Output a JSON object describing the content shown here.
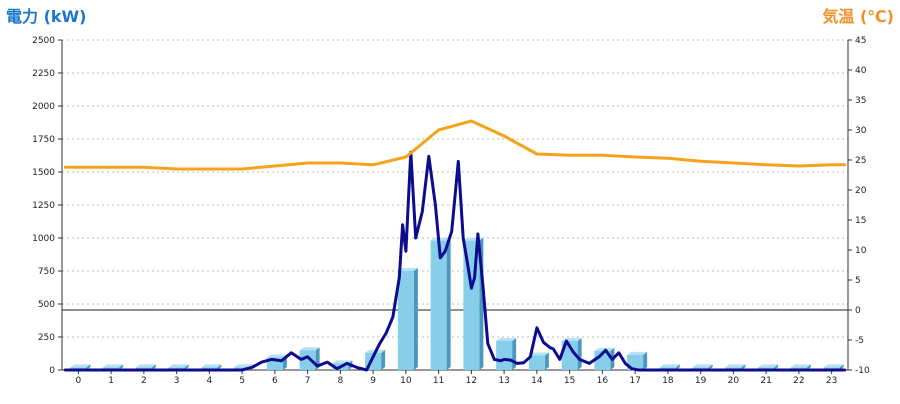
{
  "chart_data": {
    "type": "bar",
    "title": "",
    "left_axis": {
      "label": "電力 (kW)",
      "ylim": [
        0,
        2500
      ],
      "ticks": [
        0,
        250,
        500,
        750,
        1000,
        1250,
        1500,
        1750,
        2000,
        2250,
        2500
      ]
    },
    "right_axis": {
      "label": "気温 (℃)",
      "ylim": [
        -10,
        45
      ],
      "ticks": [
        -10,
        -5,
        0,
        5,
        10,
        15,
        20,
        25,
        30,
        35,
        40,
        45
      ]
    },
    "categories": [
      "0",
      "1",
      "2",
      "3",
      "4",
      "5",
      "6",
      "7",
      "8",
      "9",
      "10",
      "11",
      "12",
      "13",
      "14",
      "15",
      "16",
      "17",
      "18",
      "19",
      "20",
      "21",
      "22",
      "23"
    ],
    "grid": true,
    "legend": "none",
    "series": [
      {
        "kind": "bar",
        "axis": "left",
        "color": "#87ceeb",
        "values": [
          20,
          20,
          20,
          20,
          20,
          20,
          95,
          150,
          50,
          130,
          750,
          980,
          980,
          220,
          110,
          220,
          145,
          115,
          20,
          20,
          20,
          20,
          20,
          20
        ]
      },
      {
        "kind": "line",
        "axis": "left",
        "color": "#0c0c8c",
        "x": [
          -0.4,
          0,
          1,
          2,
          3,
          4,
          5,
          5.3,
          5.6,
          5.9,
          6.2,
          6.5,
          6.8,
          7.0,
          7.3,
          7.6,
          7.9,
          8.2,
          8.5,
          8.8,
          9.0,
          9.2,
          9.4,
          9.6,
          9.8,
          9.9,
          10.0,
          10.15,
          10.3,
          10.5,
          10.7,
          10.9,
          11.05,
          11.2,
          11.4,
          11.6,
          11.75,
          11.9,
          12.0,
          12.1,
          12.2,
          12.35,
          12.5,
          12.7,
          12.9,
          13.0,
          13.2,
          13.4,
          13.6,
          13.8,
          14.0,
          14.2,
          14.4,
          14.5,
          14.7,
          14.9,
          15.1,
          15.3,
          15.6,
          15.9,
          16.1,
          16.3,
          16.5,
          16.7,
          16.9,
          17.1,
          17.4,
          17.7,
          18.0,
          18.5,
          19,
          20,
          21,
          22,
          23,
          23.4
        ],
        "y": [
          0,
          0,
          0,
          0,
          0,
          0,
          0,
          20,
          60,
          80,
          70,
          130,
          80,
          100,
          30,
          60,
          10,
          50,
          20,
          0,
          100,
          200,
          280,
          400,
          700,
          1100,
          900,
          1650,
          1000,
          1200,
          1620,
          1250,
          850,
          900,
          1050,
          1580,
          1000,
          780,
          620,
          700,
          1030,
          650,
          200,
          80,
          70,
          80,
          75,
          50,
          55,
          100,
          320,
          210,
          170,
          160,
          80,
          220,
          140,
          80,
          50,
          100,
          150,
          80,
          130,
          50,
          10,
          0,
          0,
          0,
          0,
          0,
          0,
          0,
          0,
          0,
          0,
          0
        ]
      },
      {
        "kind": "line",
        "axis": "right",
        "color": "#f5a31a",
        "x": [
          -0.4,
          0,
          1,
          2,
          3,
          4,
          5,
          6,
          7,
          8,
          9,
          10,
          11,
          12,
          13,
          14,
          15,
          16,
          17,
          18,
          19,
          20,
          21,
          22,
          23,
          23.4
        ],
        "y": [
          23.8,
          23.8,
          23.8,
          23.8,
          23.5,
          23.5,
          23.5,
          24.0,
          24.5,
          24.5,
          24.2,
          25.5,
          30,
          31.5,
          29,
          26,
          25.8,
          25.8,
          25.5,
          25.3,
          24.8,
          24.5,
          24.2,
          24.0,
          24.2,
          24.2
        ]
      }
    ]
  }
}
